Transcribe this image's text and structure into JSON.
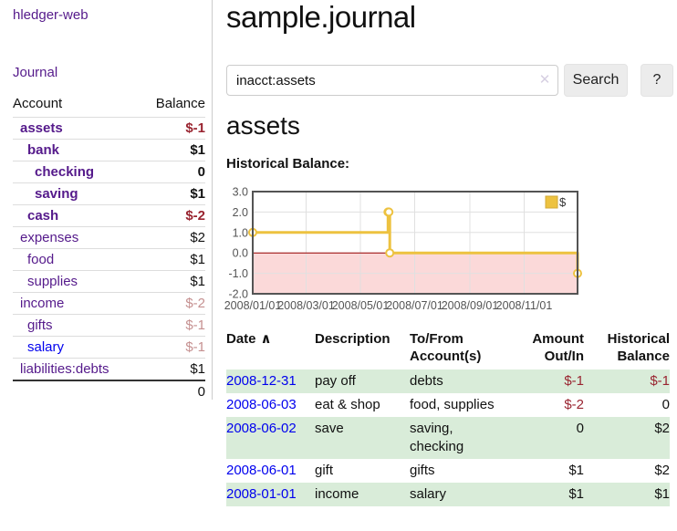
{
  "app": {
    "brand": "hledger-web",
    "nav_journal": "Journal"
  },
  "sidebar": {
    "header": {
      "account": "Account",
      "balance": "Balance"
    },
    "rows": [
      {
        "account": "assets",
        "indent": 0,
        "bold": true,
        "balance": "$-1",
        "balance_style": "neg-strong"
      },
      {
        "account": "bank",
        "indent": 1,
        "bold": true,
        "balance": "$1",
        "balance_style": "pos-strong"
      },
      {
        "account": "checking",
        "indent": 2,
        "bold": true,
        "balance": "0",
        "balance_style": "pos-strong"
      },
      {
        "account": "saving",
        "indent": 2,
        "bold": true,
        "balance": "$1",
        "balance_style": "pos-strong"
      },
      {
        "account": "cash",
        "indent": 1,
        "bold": true,
        "balance": "$-2",
        "balance_style": "neg-strong"
      },
      {
        "account": "expenses",
        "indent": 0,
        "bold": false,
        "balance": "$2",
        "balance_style": "pos"
      },
      {
        "account": "food",
        "indent": 1,
        "bold": false,
        "balance": "$1",
        "balance_style": "pos"
      },
      {
        "account": "supplies",
        "indent": 1,
        "bold": false,
        "balance": "$1",
        "balance_style": "pos"
      },
      {
        "account": "income",
        "indent": 0,
        "bold": false,
        "balance": "$-2",
        "balance_style": "neg"
      },
      {
        "account": "gifts",
        "indent": 1,
        "bold": false,
        "balance": "$-1",
        "balance_style": "neg"
      },
      {
        "account": "salary",
        "indent": 1,
        "bold": false,
        "balance": "$-1",
        "balance_style": "neg",
        "link": "unvisited"
      },
      {
        "account": "liabilities:debts",
        "indent": 0,
        "bold": false,
        "balance": "$1",
        "balance_style": "pos"
      }
    ],
    "total": "0"
  },
  "header": {
    "title": "sample.journal"
  },
  "search": {
    "value": "inacct:assets",
    "clear_icon": "✕",
    "button": "Search",
    "help_button": "?"
  },
  "account_page": {
    "title": "assets",
    "chart_label": "Historical Balance:"
  },
  "chart_data": {
    "type": "line",
    "line_style": "step-after",
    "title": "Historical Balance:",
    "xrange": [
      "2008-01-01",
      "2008-12-31"
    ],
    "ylim": [
      -2,
      3
    ],
    "grid": true,
    "legend_position": "top-right",
    "series": [
      {
        "name": "$",
        "color": "#edc240",
        "points": [
          [
            "2008-01-01",
            1
          ],
          [
            "2008-06-01",
            2
          ],
          [
            "2008-06-02",
            2
          ],
          [
            "2008-06-03",
            0
          ],
          [
            "2008-12-31",
            -1
          ]
        ]
      }
    ],
    "xticks": [
      {
        "x": "2008-01-01",
        "label": "2008/01/01"
      },
      {
        "x": "2008-03-01",
        "label": "2008/03/01"
      },
      {
        "x": "2008-05-01",
        "label": "2008/05/01"
      },
      {
        "x": "2008-07-01",
        "label": "2008/07/01"
      },
      {
        "x": "2008-09-01",
        "label": "2008/09/01"
      },
      {
        "x": "2008-11-01",
        "label": "2008/11/01"
      }
    ],
    "yticks": [
      {
        "v": 3,
        "label": "3.0"
      },
      {
        "v": 2,
        "label": "2.0"
      },
      {
        "v": 1,
        "label": "1.0"
      },
      {
        "v": 0,
        "label": "0.0"
      },
      {
        "v": -1,
        "label": "-1.0"
      },
      {
        "v": -2,
        "label": "-2.0"
      }
    ],
    "negative_region_color": "#fbd9d9",
    "zero_line_color": "#990000",
    "grid_color": "#e0e0e0",
    "border_color": "#545454"
  },
  "register": {
    "sort_icon": "∧",
    "columns": [
      {
        "label": "Date"
      },
      {
        "label": "Description"
      },
      {
        "label": "To/From\nAccount(s)"
      },
      {
        "label": "Amount\nOut/In"
      },
      {
        "label": "Historical\nBalance"
      }
    ],
    "rows": [
      {
        "date": "2008-12-31",
        "description": "pay off",
        "accounts": "debts",
        "amount": "$-1",
        "amount_negative": true,
        "balance": "$-1",
        "balance_negative": true
      },
      {
        "date": "2008-06-03",
        "description": "eat & shop",
        "accounts": "food, supplies",
        "amount": "$-2",
        "amount_negative": true,
        "balance": "0",
        "balance_negative": false
      },
      {
        "date": "2008-06-02",
        "description": "save",
        "accounts": "saving,\nchecking",
        "amount": "0",
        "amount_negative": false,
        "balance": "$2",
        "balance_negative": false
      },
      {
        "date": "2008-06-01",
        "description": "gift",
        "accounts": "gifts",
        "amount": "$1",
        "amount_negative": false,
        "balance": "$2",
        "balance_negative": false
      },
      {
        "date": "2008-01-01",
        "description": "income",
        "accounts": "salary",
        "amount": "$1",
        "amount_negative": false,
        "balance": "$1",
        "balance_negative": false
      }
    ]
  },
  "colors": {
    "link_visited_purple": "#551a8b",
    "link_unvisited_blue": "#0000ee",
    "negative_strong": "#992430",
    "negative_soft": "#c59090",
    "row_green": "#d9ecd9",
    "chart_gold": "#edc240",
    "chart_negative_pink": "#fbd9d9",
    "chart_zero_red": "#990000"
  }
}
